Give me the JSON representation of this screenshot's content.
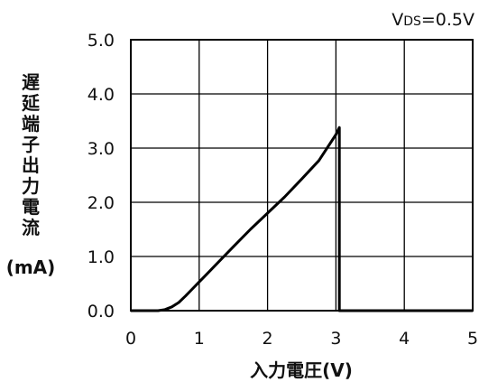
{
  "chart_data": {
    "type": "line",
    "condition": {
      "prefix": "V",
      "subscript": "DS",
      "rest": "=0.5V"
    },
    "xlabel": "入力電圧(V)",
    "ylabel": "遅延端子出力電流",
    "ylabel_unit": "(mA)",
    "xlim": [
      0,
      5
    ],
    "ylim": [
      0,
      5.0
    ],
    "xticks": [
      0,
      1,
      2,
      3,
      4,
      5
    ],
    "xtick_labels": [
      "0",
      "1",
      "2",
      "3",
      "4",
      "5"
    ],
    "yticks": [
      0,
      1,
      2,
      3,
      4,
      5
    ],
    "ytick_labels": [
      "0.0",
      "1.0",
      "2.0",
      "3.0",
      "4.0",
      "5.0"
    ],
    "grid": true,
    "series": [
      {
        "x": [
          0,
          0.4,
          0.5,
          0.6,
          0.7,
          0.8,
          0.9,
          1.0,
          1.1,
          1.2,
          1.3,
          1.5,
          1.75,
          2.0,
          2.25,
          2.5,
          2.75,
          3.0,
          3.05,
          3.05,
          3.5,
          4.0,
          5.0
        ],
        "y": [
          0,
          0,
          0.02,
          0.07,
          0.15,
          0.27,
          0.4,
          0.53,
          0.66,
          0.79,
          0.92,
          1.18,
          1.5,
          1.8,
          2.1,
          2.43,
          2.77,
          3.25,
          3.38,
          0,
          0,
          0,
          0
        ],
        "color": "#000000"
      }
    ]
  }
}
